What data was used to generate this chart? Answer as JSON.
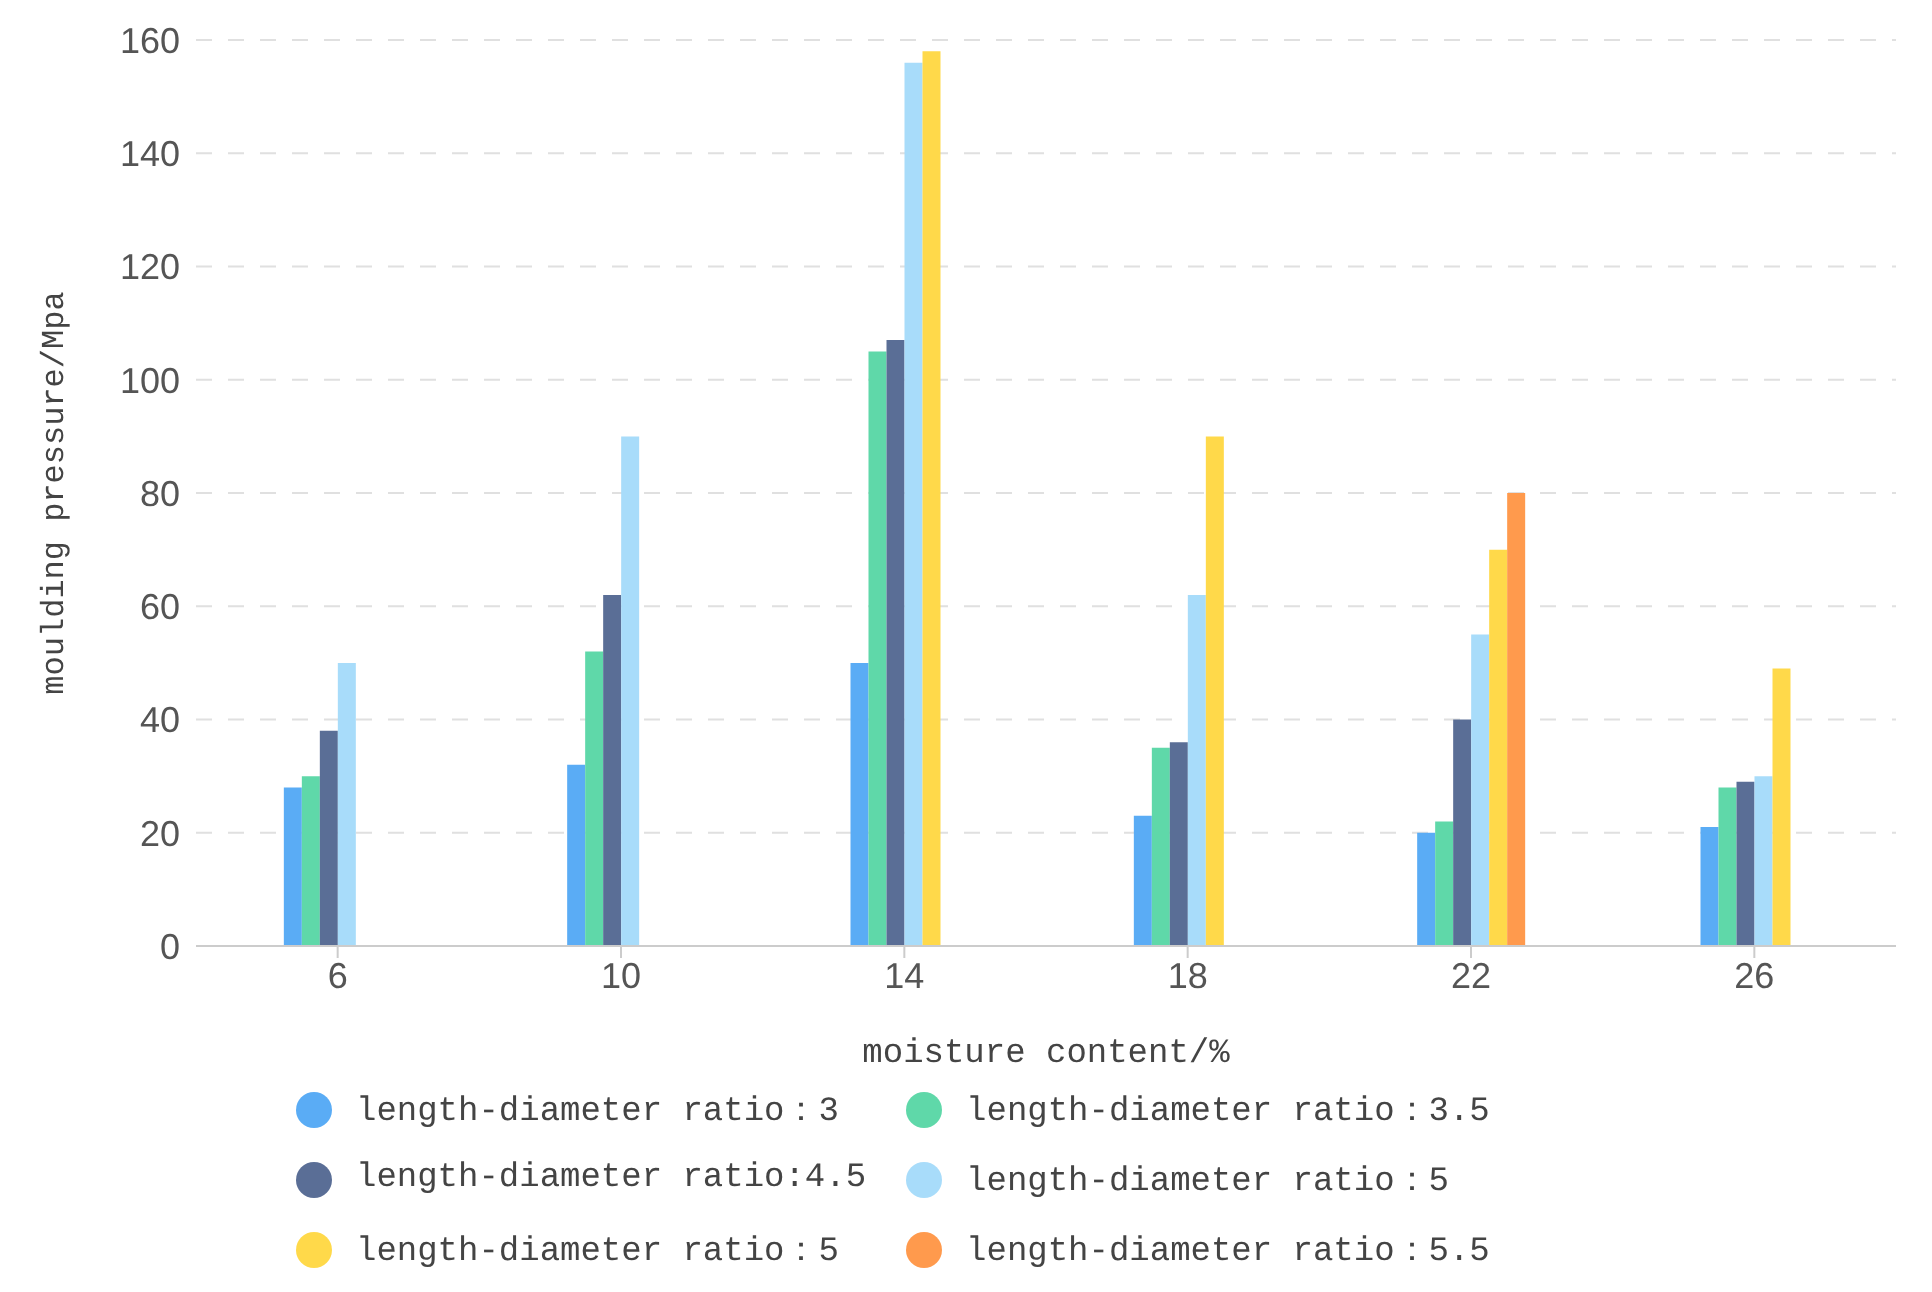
{
  "chart_data": {
    "type": "bar",
    "xlabel": "moisture content/%",
    "ylabel": "moulding pressure/Mpa",
    "categories": [
      "6",
      "10",
      "14",
      "18",
      "22",
      "26"
    ],
    "series": [
      {
        "name": "length-diameter ratio：3",
        "color": "#5aacf5",
        "values": [
          28,
          32,
          50,
          23,
          20,
          21
        ]
      },
      {
        "name": "length-diameter ratio：3.5",
        "color": "#5fd8a9",
        "values": [
          30,
          52,
          105,
          35,
          22,
          28
        ]
      },
      {
        "name": "length-diameter ratio:4.5",
        "color": "#5a6e96",
        "values": [
          38,
          62,
          107,
          36,
          40,
          29
        ]
      },
      {
        "name": "length-diameter ratio：5",
        "color": "#a8dcfa",
        "values": [
          50,
          90,
          156,
          62,
          55,
          30
        ]
      },
      {
        "name": "length-diameter ratio：5",
        "color": "#ffd94a",
        "values": [
          null,
          null,
          158,
          90,
          70,
          49
        ]
      },
      {
        "name": "length-diameter ratio：5.5",
        "color": "#ff9a4d",
        "values": [
          null,
          null,
          null,
          null,
          80,
          null
        ]
      }
    ],
    "ylim": [
      0,
      160
    ],
    "yticks": [
      0,
      20,
      40,
      60,
      80,
      100,
      120,
      140,
      160
    ],
    "grid": "y",
    "legend": "bottom"
  }
}
